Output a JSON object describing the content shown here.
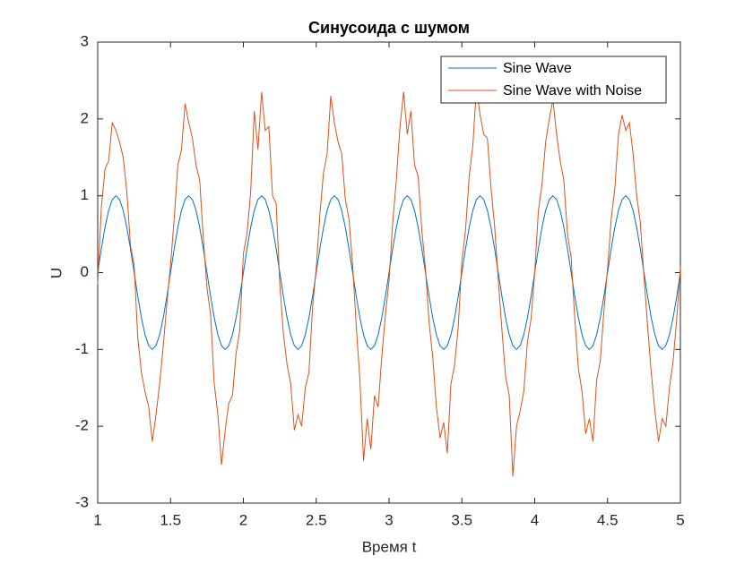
{
  "chart_data": {
    "type": "line",
    "title": "Синусоида с шумом",
    "xlabel": "Время t",
    "ylabel": "U",
    "x": [
      1,
      1.025,
      1.05,
      1.075,
      1.1,
      1.125,
      1.15,
      1.175,
      1.2,
      1.225,
      1.25,
      1.275,
      1.3,
      1.325,
      1.35,
      1.375,
      1.4,
      1.425,
      1.45,
      1.475,
      1.5,
      1.525,
      1.55,
      1.575,
      1.6,
      1.625,
      1.65,
      1.675,
      1.7,
      1.725,
      1.75,
      1.775,
      1.8,
      1.825,
      1.85,
      1.875,
      1.9,
      1.925,
      1.95,
      1.975,
      2,
      2.025,
      2.05,
      2.075,
      2.1,
      2.125,
      2.15,
      2.175,
      2.2,
      2.225,
      2.25,
      2.275,
      2.3,
      2.325,
      2.35,
      2.375,
      2.4,
      2.425,
      2.45,
      2.475,
      2.5,
      2.525,
      2.55,
      2.575,
      2.6,
      2.625,
      2.65,
      2.675,
      2.7,
      2.725,
      2.75,
      2.775,
      2.8,
      2.825,
      2.85,
      2.875,
      2.9,
      2.925,
      2.95,
      2.975,
      3,
      3.025,
      3.05,
      3.075,
      3.1,
      3.125,
      3.15,
      3.175,
      3.2,
      3.225,
      3.25,
      3.275,
      3.3,
      3.325,
      3.35,
      3.375,
      3.4,
      3.425,
      3.45,
      3.475,
      3.5,
      3.525,
      3.55,
      3.575,
      3.6,
      3.625,
      3.65,
      3.675,
      3.7,
      3.725,
      3.75,
      3.775,
      3.8,
      3.825,
      3.85,
      3.875,
      3.9,
      3.925,
      3.95,
      3.975,
      4,
      4.025,
      4.05,
      4.075,
      4.1,
      4.125,
      4.15,
      4.175,
      4.2,
      4.225,
      4.25,
      4.275,
      4.3,
      4.325,
      4.35,
      4.375,
      4.4,
      4.425,
      4.45,
      4.475,
      4.5,
      4.525,
      4.55,
      4.575,
      4.6,
      4.625,
      4.65,
      4.675,
      4.7,
      4.725,
      4.75,
      4.775,
      4.8,
      4.825,
      4.85,
      4.875,
      4.9,
      4.925,
      4.95,
      4.975,
      5
    ],
    "series": [
      {
        "name": "Sine Wave",
        "color": "#0072bd",
        "values": [
          0,
          0.309,
          0.588,
          0.809,
          0.951,
          1,
          0.951,
          0.809,
          0.588,
          0.309,
          0,
          -0.309,
          -0.588,
          -0.809,
          -0.951,
          -1,
          -0.951,
          -0.809,
          -0.588,
          -0.309,
          0,
          0.309,
          0.588,
          0.809,
          0.951,
          1,
          0.951,
          0.809,
          0.588,
          0.309,
          0,
          -0.309,
          -0.588,
          -0.809,
          -0.951,
          -1,
          -0.951,
          -0.809,
          -0.588,
          -0.309,
          0,
          0.309,
          0.588,
          0.809,
          0.951,
          1,
          0.951,
          0.809,
          0.588,
          0.309,
          0,
          -0.309,
          -0.588,
          -0.809,
          -0.951,
          -1,
          -0.951,
          -0.809,
          -0.588,
          -0.309,
          0,
          0.309,
          0.588,
          0.809,
          0.951,
          1,
          0.951,
          0.809,
          0.588,
          0.309,
          0,
          -0.309,
          -0.588,
          -0.809,
          -0.951,
          -1,
          -0.951,
          -0.809,
          -0.588,
          -0.309,
          0,
          0.309,
          0.588,
          0.809,
          0.951,
          1,
          0.951,
          0.809,
          0.588,
          0.309,
          0,
          -0.309,
          -0.588,
          -0.809,
          -0.951,
          -1,
          -0.951,
          -0.809,
          -0.588,
          -0.309,
          0,
          0.309,
          0.588,
          0.809,
          0.951,
          1,
          0.951,
          0.809,
          0.588,
          0.309,
          0,
          -0.309,
          -0.588,
          -0.809,
          -0.951,
          -1,
          -0.951,
          -0.809,
          -0.588,
          -0.309,
          0,
          0.309,
          0.588,
          0.809,
          0.951,
          1,
          0.951,
          0.809,
          0.588,
          0.309,
          0,
          -0.309,
          -0.588,
          -0.809,
          -0.951,
          -1,
          -0.951,
          -0.809,
          -0.588,
          -0.309,
          0,
          0.309,
          0.588,
          0.809,
          0.951,
          1,
          0.951,
          0.809,
          0.588,
          0.309,
          0,
          -0.309,
          -0.588,
          -0.809,
          -0.951,
          -1,
          -0.951,
          -0.809,
          -0.588,
          -0.309,
          0
        ]
      },
      {
        "name": "Sine Wave with Noise",
        "color": "#d95319",
        "values": [
          -0.15,
          0.85,
          1.35,
          1.45,
          1.95,
          1.85,
          1.7,
          1.5,
          1.05,
          0.35,
          0.1,
          -0.85,
          -1.3,
          -1.55,
          -1.75,
          -2.2,
          -1.85,
          -1.45,
          -0.95,
          -0.4,
          0.1,
          0.7,
          1.4,
          1.6,
          2.2,
          1.95,
          1.75,
          1.4,
          1.2,
          0.45,
          -0.2,
          -0.55,
          -1.45,
          -1.85,
          -2.5,
          -2.05,
          -1.7,
          -1.6,
          -1.05,
          -0.75,
          0.25,
          0.5,
          1.05,
          2.1,
          1.6,
          2.35,
          1.85,
          1.9,
          1,
          0.9,
          -0.15,
          -0.8,
          -1.2,
          -1.45,
          -2.05,
          -1.85,
          -2,
          -1.5,
          -1.3,
          -0.45,
          0.05,
          0.75,
          1.3,
          1.55,
          2.3,
          1.95,
          1.7,
          1.55,
          0.95,
          0.7,
          0.1,
          -0.7,
          -1.4,
          -2.45,
          -1.9,
          -2.3,
          -1.6,
          -1.75,
          -1.1,
          -0.55,
          -0.1,
          0.65,
          1.2,
          1.9,
          2.35,
          1.8,
          2.1,
          1.4,
          1.25,
          0.55,
          0.05,
          -0.65,
          -1.1,
          -1.75,
          -2.15,
          -1.95,
          -2.35,
          -1.45,
          -1.2,
          -0.7,
          0.15,
          0.55,
          1.25,
          1.65,
          2.4,
          2.05,
          1.8,
          1.75,
          1.1,
          0.6,
          -0.1,
          -0.75,
          -1.35,
          -1.6,
          -2.65,
          -2,
          -1.8,
          -1.55,
          -0.9,
          -0.6,
          0,
          0.8,
          1.15,
          1.7,
          2,
          2.25,
          1.8,
          1.45,
          1.2,
          0.5,
          0.2,
          -0.6,
          -1.25,
          -1.55,
          -2.1,
          -1.9,
          -2.2,
          -1.4,
          -1.15,
          -0.5,
          0.05,
          0.7,
          1.1,
          1.8,
          2.05,
          1.85,
          1.95,
          1.55,
          1,
          0.65,
          -0.05,
          -0.7,
          -1.3,
          -1.8,
          -2.2,
          -1.9,
          -2,
          -1.5,
          -1.15,
          -0.6,
          0.08
        ]
      }
    ],
    "xlim": [
      1,
      5
    ],
    "xticks": [
      1,
      1.5,
      2,
      2.5,
      3,
      3.5,
      4,
      4.5,
      5
    ],
    "ylim": [
      -3,
      3
    ],
    "yticks": [
      -3,
      -2,
      -1,
      0,
      1,
      2,
      3
    ],
    "legend": "top-right"
  }
}
